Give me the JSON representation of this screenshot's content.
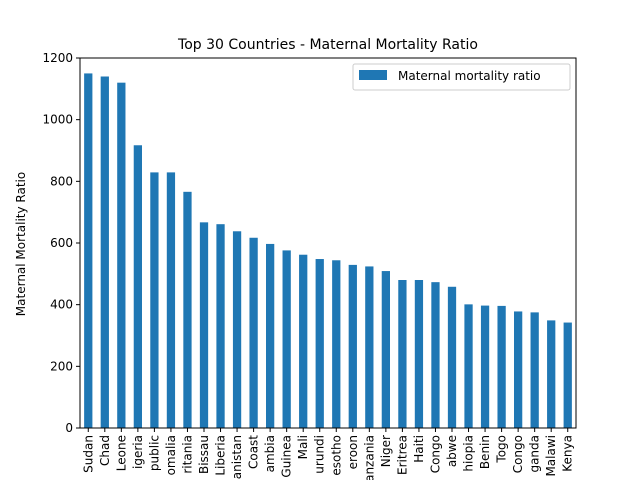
{
  "chart_data": {
    "type": "bar",
    "title": "Top 30 Countries - Maternal Mortality Ratio",
    "xlabel": "",
    "ylabel": "Maternal Mortality Ratio",
    "ylim": [
      0,
      1200
    ],
    "yticks": [
      0,
      200,
      400,
      600,
      800,
      1000,
      1200
    ],
    "grid": false,
    "legend_position": "top-right",
    "categories": [
      "Sudan",
      "Chad",
      "Leone",
      "igeria",
      "public",
      "omalia",
      "ritania",
      "Bissau",
      "Liberia",
      "anistan",
      "Coast",
      "ambia",
      "Guinea",
      "Mali",
      "urundi",
      "esotho",
      "eroon",
      "anzania",
      "Niger",
      "Eritrea",
      "Haiti",
      "Congo",
      "abwe",
      "hiopia",
      "Benin",
      "Togo",
      "Congo",
      "ganda",
      "Malawi",
      "Kenya"
    ],
    "series": [
      {
        "name": "Maternal mortality ratio",
        "color": "#1f77b4",
        "values": [
          1150,
          1140,
          1120,
          917,
          829,
          829,
          766,
          667,
          661,
          638,
          617,
          597,
          576,
          562,
          548,
          544,
          529,
          524,
          509,
          480,
          480,
          473,
          458,
          401,
          397,
          396,
          378,
          375,
          349,
          342
        ]
      }
    ]
  }
}
